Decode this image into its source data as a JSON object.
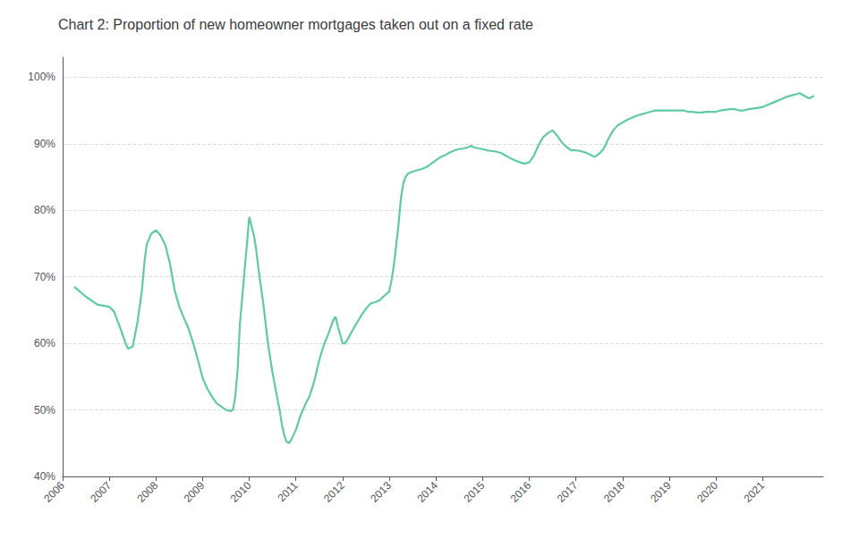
{
  "chart_data": {
    "type": "line",
    "title": "Chart 2: Proportion of new homeowner mortgages taken out on a fixed rate",
    "color": "#5ecba1",
    "grid": true,
    "xlim": [
      2006.0,
      2022.3
    ],
    "xticks": [
      2006,
      2007,
      2008,
      2009,
      2010,
      2011,
      2012,
      2013,
      2014,
      2015,
      2016,
      2017,
      2018,
      2019,
      2020,
      2021
    ],
    "ylim": [
      0.4,
      1.03
    ],
    "yticks": [
      {
        "value": 0.4,
        "label": "40%"
      },
      {
        "value": 0.5,
        "label": "50%"
      },
      {
        "value": 0.6,
        "label": "60%"
      },
      {
        "value": 0.7,
        "label": "70%"
      },
      {
        "value": 0.8,
        "label": "80%"
      },
      {
        "value": 0.9,
        "label": "90%"
      },
      {
        "value": 1.0,
        "label": "100%"
      }
    ],
    "x": [
      2006.25,
      2006.5,
      2006.75,
      2007.0,
      2007.1,
      2007.25,
      2007.35,
      2007.4,
      2007.5,
      2007.6,
      2007.7,
      2007.75,
      2007.8,
      2007.9,
      2008.0,
      2008.1,
      2008.2,
      2008.3,
      2008.4,
      2008.5,
      2008.6,
      2008.7,
      2008.8,
      2008.9,
      2009.0,
      2009.1,
      2009.2,
      2009.3,
      2009.4,
      2009.5,
      2009.6,
      2009.65,
      2009.7,
      2009.75,
      2009.8,
      2009.9,
      2010.0,
      2010.1,
      2010.15,
      2010.2,
      2010.3,
      2010.4,
      2010.5,
      2010.6,
      2010.65,
      2010.7,
      2010.75,
      2010.8,
      2010.85,
      2010.9,
      2011.0,
      2011.1,
      2011.2,
      2011.3,
      2011.4,
      2011.5,
      2011.6,
      2011.7,
      2011.8,
      2011.85,
      2011.9,
      2012.0,
      2012.05,
      2012.1,
      2012.2,
      2012.3,
      2012.4,
      2012.5,
      2012.6,
      2012.7,
      2012.8,
      2012.9,
      2013.0,
      2013.05,
      2013.1,
      2013.15,
      2013.2,
      2013.25,
      2013.3,
      2013.35,
      2013.4,
      2013.5,
      2013.6,
      2013.7,
      2013.8,
      2013.9,
      2014.0,
      2014.1,
      2014.2,
      2014.3,
      2014.4,
      2014.5,
      2014.6,
      2014.7,
      2014.75,
      2014.8,
      2014.9,
      2015.0,
      2015.1,
      2015.2,
      2015.3,
      2015.4,
      2015.5,
      2015.6,
      2015.7,
      2015.8,
      2015.9,
      2016.0,
      2016.1,
      2016.2,
      2016.3,
      2016.4,
      2016.45,
      2016.5,
      2016.6,
      2016.7,
      2016.8,
      2016.9,
      2017.0,
      2017.1,
      2017.2,
      2017.3,
      2017.4,
      2017.5,
      2017.6,
      2017.7,
      2017.8,
      2017.9,
      2018.0,
      2018.1,
      2018.2,
      2018.3,
      2018.4,
      2018.5,
      2018.6,
      2018.7,
      2018.8,
      2018.9,
      2019.0,
      2019.1,
      2019.2,
      2019.3,
      2019.4,
      2019.5,
      2019.6,
      2019.7,
      2019.8,
      2019.9,
      2020.0,
      2020.1,
      2020.2,
      2020.3,
      2020.4,
      2020.5,
      2020.6,
      2020.7,
      2020.8,
      2020.9,
      2021.0,
      2021.1,
      2021.2,
      2021.3,
      2021.4,
      2021.5,
      2021.6,
      2021.7,
      2021.8,
      2021.9,
      2022.0,
      2022.1
    ],
    "values": [
      0.685,
      0.67,
      0.658,
      0.655,
      0.648,
      0.62,
      0.6,
      0.592,
      0.595,
      0.63,
      0.68,
      0.72,
      0.748,
      0.765,
      0.77,
      0.762,
      0.748,
      0.72,
      0.68,
      0.655,
      0.638,
      0.622,
      0.6,
      0.575,
      0.548,
      0.532,
      0.52,
      0.51,
      0.505,
      0.5,
      0.498,
      0.5,
      0.52,
      0.56,
      0.63,
      0.71,
      0.79,
      0.762,
      0.74,
      0.71,
      0.66,
      0.6,
      0.555,
      0.518,
      0.5,
      0.478,
      0.462,
      0.452,
      0.45,
      0.455,
      0.47,
      0.492,
      0.508,
      0.522,
      0.545,
      0.575,
      0.598,
      0.615,
      0.635,
      0.64,
      0.625,
      0.6,
      0.6,
      0.605,
      0.618,
      0.63,
      0.642,
      0.652,
      0.66,
      0.662,
      0.665,
      0.672,
      0.678,
      0.695,
      0.718,
      0.748,
      0.78,
      0.818,
      0.84,
      0.85,
      0.855,
      0.858,
      0.86,
      0.862,
      0.865,
      0.87,
      0.875,
      0.88,
      0.883,
      0.887,
      0.89,
      0.892,
      0.893,
      0.895,
      0.897,
      0.895,
      0.893,
      0.892,
      0.89,
      0.889,
      0.888,
      0.886,
      0.882,
      0.878,
      0.875,
      0.872,
      0.87,
      0.872,
      0.882,
      0.898,
      0.91,
      0.916,
      0.918,
      0.92,
      0.912,
      0.902,
      0.895,
      0.89,
      0.89,
      0.889,
      0.887,
      0.884,
      0.88,
      0.885,
      0.893,
      0.908,
      0.92,
      0.928,
      0.932,
      0.936,
      0.939,
      0.942,
      0.944,
      0.946,
      0.948,
      0.95,
      0.95,
      0.95,
      0.95,
      0.95,
      0.95,
      0.95,
      0.948,
      0.948,
      0.947,
      0.947,
      0.948,
      0.948,
      0.948,
      0.95,
      0.951,
      0.952,
      0.952,
      0.95,
      0.95,
      0.952,
      0.953,
      0.954,
      0.955,
      0.958,
      0.961,
      0.964,
      0.967,
      0.97,
      0.972,
      0.974,
      0.976,
      0.972,
      0.968,
      0.972
    ]
  }
}
